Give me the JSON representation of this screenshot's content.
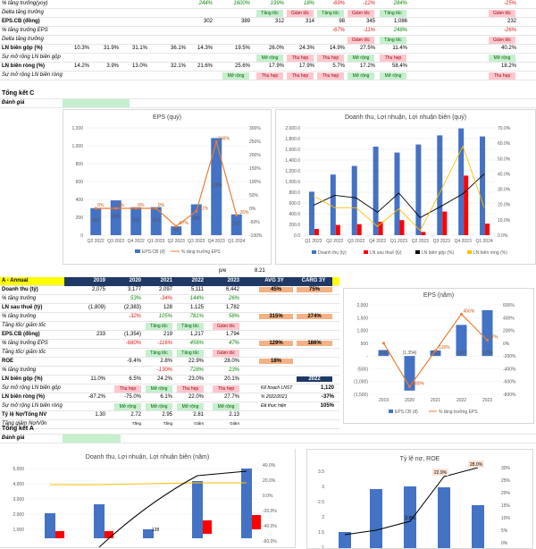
{
  "qrows": [
    {
      "label": "% tăng trưởng(yoy)",
      "style": "i",
      "vals": [
        "",
        "",
        "",
        "",
        "244%",
        "1600%",
        "199%",
        "18%",
        "-69%",
        "-12%",
        "284%",
        "-25%"
      ],
      "colors": [
        "",
        "",
        "",
        "",
        "grn",
        "grn",
        "grn",
        "grn",
        "red",
        "red",
        "grn",
        "red"
      ]
    },
    {
      "label": "Delta tăng trưởng",
      "style": "i",
      "tags": [
        [
          "Tăng tốc",
          "g"
        ],
        [
          "Giảm tốc",
          "r"
        ],
        [
          "Tăng tốc",
          "g"
        ],
        [
          "Giảm tốc",
          "r"
        ],
        [
          "Tăng tốc",
          "g"
        ],
        [
          "Giảm tốc",
          "r"
        ]
      ]
    },
    {
      "label": "EPS.CB (đồng)",
      "style": "b",
      "vals": [
        "",
        "",
        "",
        "",
        "302",
        "389",
        "312",
        "314",
        "98",
        "345",
        "1,086",
        "232"
      ]
    },
    {
      "label": "% tăng trưởng EPS",
      "style": "i",
      "vals": [
        "",
        "",
        "",
        "",
        "",
        "",
        "",
        "",
        "-67%",
        "-11%",
        "248%",
        "-26%"
      ],
      "colors": [
        "",
        "",
        "",
        "",
        "",
        "",
        "",
        "",
        "red",
        "red",
        "grn",
        "red"
      ]
    },
    {
      "label": "Delta tăng trưởng",
      "style": "i",
      "tags": [
        [
          "",
          "n"
        ],
        [
          "",
          "n"
        ],
        [
          "",
          "n"
        ],
        [
          "",
          "n"
        ],
        [
          "Giảm tốc",
          "r"
        ],
        [
          "Tăng tốc",
          "g"
        ],
        [
          "Giảm tốc",
          "r"
        ]
      ]
    },
    {
      "label": "LN biên gộp (%)",
      "style": "b",
      "vals": [
        "10.3%",
        "31.9%",
        "31.1%",
        "36.1%",
        "14.3%",
        "19.5%",
        "26.0%",
        "24.3%",
        "14.9%",
        "27.5%",
        "11.4%",
        "40.2%"
      ]
    },
    {
      "label": "Sự mở rộng LN biên gộp",
      "style": "i",
      "tags": [
        [
          "Mở rộng",
          "g"
        ],
        [
          "Thu hẹp",
          "r"
        ],
        [
          "Thu hẹp",
          "r"
        ],
        [
          "Mở rộng",
          "g"
        ],
        [
          "Thu hẹp",
          "r"
        ],
        [
          "Mở rộng",
          "g"
        ]
      ]
    },
    {
      "label": "LN biên ròng (%)",
      "style": "b",
      "vals": [
        "14.2%",
        "3.9%",
        "13.0%",
        "32.1%",
        "21.6%",
        "25.6%",
        "17.9%",
        "17.9%",
        "5.7%",
        "17.2%",
        "58.4%",
        "18.2%"
      ]
    },
    {
      "label": "Sự mở rộng LN biên ròng",
      "style": "i",
      "tags": [
        [
          "Mở rộng",
          "g"
        ],
        [
          "Thu hẹp",
          "r"
        ],
        [
          "Thu hẹp",
          "r"
        ],
        [
          "Thu hẹp",
          "r"
        ],
        [
          "Mở rộng",
          "g"
        ],
        [
          "Mở rộng",
          "g"
        ],
        [
          "Thu hẹp",
          "r"
        ]
      ]
    }
  ],
  "tongketC": "Tổng kết C",
  "danhgia": "Đánh giá",
  "eps_q": {
    "chart_data": {
      "type": "bar",
      "title": "EPS (quý)",
      "categories": [
        "Q2 2022",
        "Q3 2022",
        "Q4 2022",
        "Q1 2023",
        "Q2 2023",
        "Q3 2023",
        "Q4 2023",
        "Q1 2024"
      ],
      "series": [
        {
          "name": "EPS.CB (đ)",
          "values": [
            302,
            389,
            312,
            314,
            98,
            345,
            1086,
            232
          ]
        },
        {
          "name": "% tăng trưởng EPS",
          "values": [
            0,
            0,
            0,
            0,
            -67,
            -11,
            248,
            -26
          ]
        }
      ],
      "ylim": [
        0,
        1200
      ],
      "y2lim": [
        -100,
        300
      ],
      "yticks": [
        "0",
        "200",
        "400",
        "600",
        "800",
        "1,000",
        "1,200"
      ],
      "y2ticks": [
        "-100%",
        "-50%",
        "0%",
        "50%",
        "100%",
        "150%",
        "200%",
        "250%",
        "300%"
      ],
      "bar_labels": [
        "302",
        "389",
        "312",
        "314",
        "98",
        "345",
        "1,086",
        "232"
      ],
      "line_labels": [
        "0%",
        "0%",
        "0%",
        "0%",
        "-67%",
        "-11%",
        "248%",
        "-26%"
      ]
    }
  },
  "rev_q": {
    "chart_data": {
      "type": "bar",
      "title": "Doanh thu, Lợi nhuận, Lợi nhuận biên (quý)",
      "categories": [
        "Q1 2022",
        "Q2 2022",
        "Q3 2022",
        "Q4 2022",
        "Q1 2023",
        "Q2 2023",
        "Q3 2023",
        "Q4 2023",
        "Q1 2024"
      ],
      "series": [
        {
          "name": "Doanh thu (tỷ)",
          "values": [
            810,
            1130,
            1290,
            1650,
            1540,
            1690,
            1860,
            1990,
            1840
          ]
        },
        {
          "name": "LN sau thuế (tỷ)",
          "values": [
            115,
            190,
            205,
            250,
            280,
            60,
            440,
            1110,
            215
          ]
        },
        {
          "name": "LN biên gộp (%)",
          "values": [
            19.5,
            26.0,
            24.3,
            14.9,
            27.5,
            11.4,
            19,
            27,
            40
          ]
        },
        {
          "name": "LN biên ròng (%)",
          "values": [
            25.6,
            17.9,
            17.9,
            5.7,
            17.2,
            3,
            30,
            58,
            18
          ]
        }
      ],
      "yticks": [
        "0.0",
        "200.0",
        "400.0",
        "600.0",
        "800.0",
        "1,000.0",
        "1,200.0",
        "1,400.0",
        "1,600.0",
        "1,800.0",
        "2,000.0"
      ],
      "y2ticks": [
        "0.0%",
        "10.0%",
        "20.0%",
        "30.0%",
        "40.0%",
        "50.0%",
        "60.0%",
        "70.0%"
      ]
    }
  },
  "pe": {
    "label": "p/e",
    "value": "8.21"
  },
  "annual": {
    "title": "A - Annual",
    "years": [
      "2019",
      "2020",
      "2021",
      "2022",
      "2023"
    ],
    "avg": "AVG 3Y",
    "carg": "CARG 3Y",
    "rows": [
      {
        "label": "Doanh thu (tỷ)",
        "style": "b",
        "vals": [
          "2,075",
          "3,177",
          "2,097",
          "5,111",
          "6,442"
        ],
        "a": "45%",
        "c": "75%"
      },
      {
        "label": "% tăng trưởng",
        "style": "i",
        "vals": [
          "",
          "53%",
          "-34%",
          "144%",
          "26%"
        ],
        "colors": [
          "",
          "grn",
          "red",
          "grn",
          "grn"
        ]
      },
      {
        "label": "LN sau thuế (tỷ)",
        "style": "b",
        "vals": [
          "(1,809)",
          "(2,383)",
          "128",
          "1,125",
          "1,782"
        ]
      },
      {
        "label": "% tăng trưởng",
        "style": "i",
        "vals": [
          "",
          "-32%",
          "105%",
          "781%",
          "58%"
        ],
        "colors": [
          "",
          "red",
          "grn",
          "grn",
          "grn"
        ],
        "a": "315%",
        "c": "274%"
      },
      {
        "label": "Tăng tốc/ giảm tốc",
        "style": "i",
        "tags": [
          [
            "",
            "n"
          ],
          [
            "",
            "n"
          ],
          [
            "Tăng tốc",
            "g"
          ],
          [
            "Tăng tốc",
            "g"
          ],
          [
            "Giảm tốc",
            "r"
          ]
        ]
      },
      {
        "label": "EPS.CB (đồng)",
        "style": "b",
        "vals": [
          "233",
          "(1,354)",
          "219",
          "1,217",
          "1,794"
        ]
      },
      {
        "label": "% tăng trưởng EPS",
        "style": "i",
        "vals": [
          "",
          "-680%",
          "-116%",
          "456%",
          "47%"
        ],
        "colors": [
          "",
          "red",
          "red",
          "grn",
          "grn"
        ],
        "a": "129%",
        "c": "186%"
      },
      {
        "label": "Tăng tốc/ giảm tốc",
        "style": "i",
        "tags": [
          [
            "",
            "n"
          ],
          [
            "",
            "n"
          ],
          [
            "Tăng tốc",
            "g"
          ],
          [
            "Tăng tốc",
            "g"
          ],
          [
            "Giảm tốc",
            "r"
          ]
        ]
      },
      {
        "label": "ROE",
        "style": "b",
        "vals": [
          "",
          "-9.4%",
          "2.8%",
          "22.9%",
          "28.0%"
        ],
        "a": "18%"
      },
      {
        "label": "% tăng trưởng",
        "style": "i",
        "vals": [
          "",
          "",
          "-130%",
          "728%",
          "23%"
        ],
        "colors": [
          "",
          "",
          "red",
          "grn",
          "grn"
        ]
      },
      {
        "label": "LN biên gộp (%)",
        "style": "b",
        "vals": [
          "11.0%",
          "6.5%",
          "24.2%",
          "23.0%",
          "20.1%"
        ],
        "extra": "2022"
      },
      {
        "label": "Sự mở rộng LN biên gộp",
        "style": "i",
        "tags": [
          [
            "",
            "n"
          ],
          [
            "Thu hẹp",
            "r"
          ],
          [
            "Mở rộng",
            "g"
          ],
          [
            "Thu hẹp",
            "r"
          ],
          [
            "Thu hẹp",
            "r"
          ]
        ],
        "k1": "Kế hoạch LNST",
        "k2": "1,120"
      },
      {
        "label": "LN biên ròng (%)",
        "style": "b",
        "vals": [
          "-87.2%",
          "-75.0%",
          "6.1%",
          "22.0%",
          "27.7%"
        ],
        "k1": "% 2022/2021",
        "k2": "-37%"
      },
      {
        "label": "Sự mở rộng LN biên ròng",
        "style": "i",
        "tags": [
          [
            "",
            "n"
          ],
          [
            "Mở rộng",
            "g"
          ],
          [
            "Mở rộng",
            "g"
          ],
          [
            "Mở rộng",
            "g"
          ],
          [
            "Mở rộng",
            "g"
          ]
        ],
        "k1": "Đã thực hiện",
        "k2": "105%"
      },
      {
        "label": "Tỷ lệ Nợ/Tổng NV",
        "style": "b",
        "vals": [
          "1.30",
          "2.72",
          "2.95",
          "2.81",
          "2.13"
        ]
      },
      {
        "label": "Tăng giảm Nợ/Vốn",
        "style": "i",
        "small": [
          "",
          "Tăng",
          "Tăng",
          "Giảm",
          "Giảm"
        ]
      }
    ]
  },
  "tongketA": "Tổng kết A",
  "danhgia2": "Đánh giá",
  "eps_y": {
    "chart_data": {
      "type": "bar",
      "title": "EPS  (năm)",
      "categories": [
        "2019",
        "2020",
        "2021",
        "2022",
        "2023"
      ],
      "series": [
        {
          "name": "EPS.CB (đ)",
          "values": [
            233,
            -1354,
            219,
            1217,
            1794
          ]
        },
        {
          "name": "% tăng trưởng EPS",
          "values": [
            0,
            -680,
            -116,
            456,
            47
          ]
        }
      ],
      "yticks": [
        "(1,500)",
        "(1,000)",
        "(500)",
        "-",
        "500",
        "1,000",
        "1,500",
        "2,000"
      ],
      "y2ticks": [
        "-800%",
        "-600%",
        "-400%",
        "-200%",
        "0%",
        "200%",
        "400%",
        "600%"
      ],
      "bar_labels": [
        "233",
        "(1,354)",
        "219",
        "1,217",
        "1,794"
      ],
      "line_labels": [
        "",
        "-680%",
        "-116%",
        "456%",
        "47%"
      ]
    }
  },
  "rev_y": {
    "chart_data": {
      "type": "bar",
      "title": "Doanh thu, Lợi nhuận, Lợi nhuận biên (năm)",
      "yticks": [
        "5,000",
        "4,000",
        "3,000",
        "2,000",
        "1,000"
      ],
      "y2ticks": [
        "40.0%",
        "20.0%",
        "0.0%",
        "-20.0%",
        "-40.0%",
        "-60.0%"
      ],
      "bar_label": "128"
    }
  },
  "ty_le": {
    "chart_data": {
      "type": "bar",
      "title": "Tỷ lệ nợ, ROE",
      "yticks": [
        "3.5",
        "3",
        "2.5",
        "2",
        "1.5",
        "1"
      ],
      "y2ticks": [
        "30%",
        "25%",
        "20%",
        "15%",
        "10%",
        "5%",
        "0%"
      ],
      "labels": [
        "22.9%",
        "28.0%",
        "2.8%"
      ]
    }
  }
}
